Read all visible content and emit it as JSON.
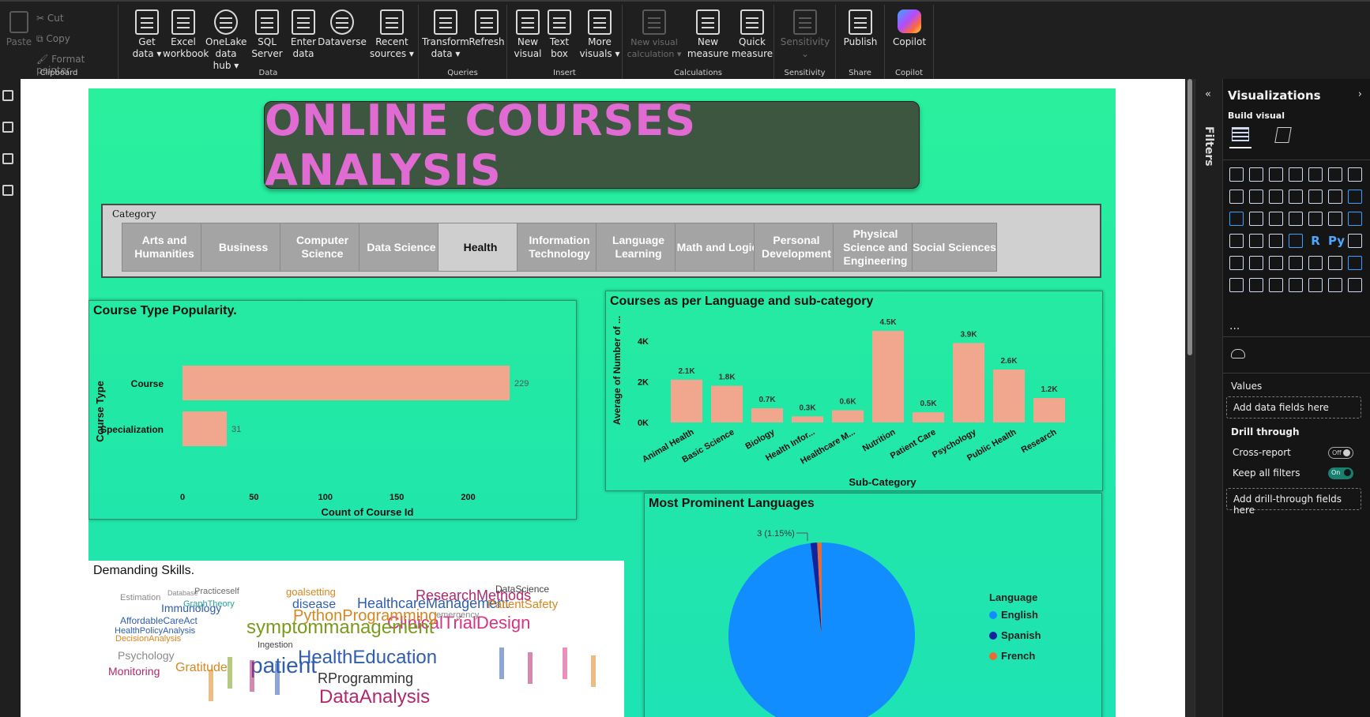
{
  "ribbon": {
    "clipboard": {
      "paste": "Paste",
      "cut": "Cut",
      "copy": "Copy",
      "format_painter": "Format painter",
      "label": "Clipboard"
    },
    "data": {
      "label": "Data",
      "buttons": [
        {
          "line1": "Get",
          "line2": "data ▾"
        },
        {
          "line1": "Excel",
          "line2": "workbook"
        },
        {
          "line1": "OneLake",
          "line2": "data hub ▾"
        },
        {
          "line1": "SQL",
          "line2": "Server"
        },
        {
          "line1": "Enter",
          "line2": "data"
        },
        {
          "line1": "Dataverse",
          "line2": ""
        },
        {
          "line1": "Recent",
          "line2": "sources ▾"
        }
      ]
    },
    "queries": {
      "label": "Queries",
      "buttons": [
        {
          "line1": "Transform",
          "line2": "data ▾"
        },
        {
          "line1": "Refresh",
          "line2": ""
        }
      ]
    },
    "insert": {
      "label": "Insert",
      "buttons": [
        {
          "line1": "New",
          "line2": "visual"
        },
        {
          "line1": "Text",
          "line2": "box"
        },
        {
          "line1": "More",
          "line2": "visuals ▾"
        }
      ]
    },
    "calculations": {
      "label": "Calculations",
      "buttons": [
        {
          "line1": "New visual",
          "line2": "calculation ▾"
        },
        {
          "line1": "New",
          "line2": "measure"
        },
        {
          "line1": "Quick",
          "line2": "measure"
        }
      ]
    },
    "sensitivity": {
      "label": "Sensitivity",
      "button": "Sensitivity"
    },
    "share": {
      "label": "Share",
      "button": "Publish"
    },
    "copilot": {
      "label": "Copilot",
      "button": "Copilot"
    }
  },
  "report": {
    "title": "ONLINE COURSES ANALYSIS",
    "slicer": {
      "title": "Category",
      "selected": "Health",
      "items": [
        "Arts and Humanities",
        "Business",
        "Computer Science",
        "Data Science",
        "Health",
        "Information Technology",
        "Language Learning",
        "Math and Logic",
        "Personal Development",
        "Physical Science and Engineering",
        "Social Sciences"
      ]
    },
    "course_type": {
      "title": "Course Type Popularity.",
      "xlabel": "Count of Course Id",
      "ylabel": "Course Type",
      "ticks": [
        "0",
        "50",
        "100",
        "150",
        "200"
      ]
    },
    "language_sub": {
      "title": "Courses as per Language and sub-category",
      "xlabel": "Sub-Category",
      "ylabel": "Average of Number of ...",
      "ticks": [
        "0K",
        "2K",
        "4K"
      ]
    },
    "languages": {
      "title": "Most Prominent Languages",
      "legend_title": "Language",
      "slice_label": "3 (1.15%)"
    },
    "skills": {
      "title": "Demanding Skills.",
      "words": [
        {
          "t": "Estimation",
          "s": 11,
          "c": "#8a8a8a"
        },
        {
          "t": "Database",
          "s": 9,
          "c": "#8a8a8a"
        },
        {
          "t": "Practiceself",
          "s": 11,
          "c": "#6b6b6b"
        },
        {
          "t": "goalsetting",
          "s": 13,
          "c": "#d8861f"
        },
        {
          "t": "HealthcareManagement",
          "s": 18,
          "c": "#2f5db0"
        },
        {
          "t": "ResearchMethods",
          "s": 18,
          "c": "#b0286f"
        },
        {
          "t": "PatientSafety",
          "s": 15,
          "c": "#d8861f"
        },
        {
          "t": "DataScience",
          "s": 12,
          "c": "#444"
        },
        {
          "t": "Immunology",
          "s": 14,
          "c": "#2f5db0"
        },
        {
          "t": "AffordableCareAct",
          "s": 12,
          "c": "#2f5db0"
        },
        {
          "t": "HealthPolicyAnalysis",
          "s": 11,
          "c": "#2f5db0"
        },
        {
          "t": "GraphTheory",
          "s": 11,
          "c": "#2aa198"
        },
        {
          "t": "ClinicalTrialDesign",
          "s": 22,
          "c": "#d63384"
        },
        {
          "t": "symptommanagement",
          "s": 24,
          "c": "#7a9a1a"
        },
        {
          "t": "PythonProgramming",
          "s": 20,
          "c": "#d8861f"
        },
        {
          "t": "Psychology",
          "s": 14,
          "c": "#8a8a8a"
        },
        {
          "t": "Monitoring",
          "s": 14,
          "c": "#b0286f"
        },
        {
          "t": "patient",
          "s": 28,
          "c": "#2f5db0"
        },
        {
          "t": "HealthEducation",
          "s": 24,
          "c": "#2f5db0"
        },
        {
          "t": "RProgramming",
          "s": 18,
          "c": "#333"
        },
        {
          "t": "DataAnalysis",
          "s": 24,
          "c": "#b0286f"
        },
        {
          "t": "disease",
          "s": 16,
          "c": "#2f5db0"
        },
        {
          "t": "emergency",
          "s": 11,
          "c": "#8a8a8a"
        },
        {
          "t": "DecisionAnalysis",
          "s": 11,
          "c": "#d8861f"
        },
        {
          "t": "Ingestion",
          "s": 11,
          "c": "#444"
        },
        {
          "t": "Gratitude",
          "s": 16,
          "c": "#d8861f"
        }
      ]
    }
  },
  "chart_data": [
    {
      "type": "bar",
      "orientation": "horizontal",
      "title": "Course Type Popularity.",
      "categories": [
        "Course",
        "Specialization"
      ],
      "values": [
        229,
        31
      ],
      "data_labels": [
        "229",
        "31"
      ],
      "xlabel": "Count of Course Id",
      "ylabel": "Course Type",
      "xlim": [
        0,
        229
      ],
      "color": "#f0a78e"
    },
    {
      "type": "bar",
      "title": "Courses as per Language and sub-category",
      "categories": [
        "Animal Health",
        "Basic Science",
        "Biology",
        "Health Infor...",
        "Healthcare M...",
        "Nutrition",
        "Patient Care",
        "Psychology",
        "Public Health",
        "Research"
      ],
      "values": [
        2100,
        1800,
        700,
        300,
        600,
        4500,
        500,
        3900,
        2600,
        1200
      ],
      "data_labels": [
        "2.1K",
        "1.8K",
        "0.7K",
        "0.3K",
        "0.6K",
        "4.5K",
        "0.5K",
        "3.9K",
        "2.6K",
        "1.2K"
      ],
      "xlabel": "Sub-Category",
      "ylabel": "Average of Number of ...",
      "ylim": [
        0,
        4500
      ],
      "color": "#f0a78e"
    },
    {
      "type": "pie",
      "title": "Most Prominent Languages",
      "labels": [
        "English",
        "Spanish",
        "French"
      ],
      "values": [
        255,
        3,
        2
      ],
      "colors": [
        "#118dff",
        "#12239e",
        "#e66c37"
      ],
      "legend_position": "right"
    }
  ],
  "viz_pane": {
    "title": "Visualizations",
    "build_visual": "Build visual",
    "more": "...",
    "values_label": "Values",
    "values_placeholder": "Add data fields here",
    "drill_label": "Drill through",
    "cross_report": "Cross-report",
    "cross_report_state": "Off",
    "keep_filters": "Keep all filters",
    "keep_filters_state": "On",
    "drill_placeholder": "Add drill-through fields here"
  },
  "filters_strip": {
    "label": "Filters"
  }
}
